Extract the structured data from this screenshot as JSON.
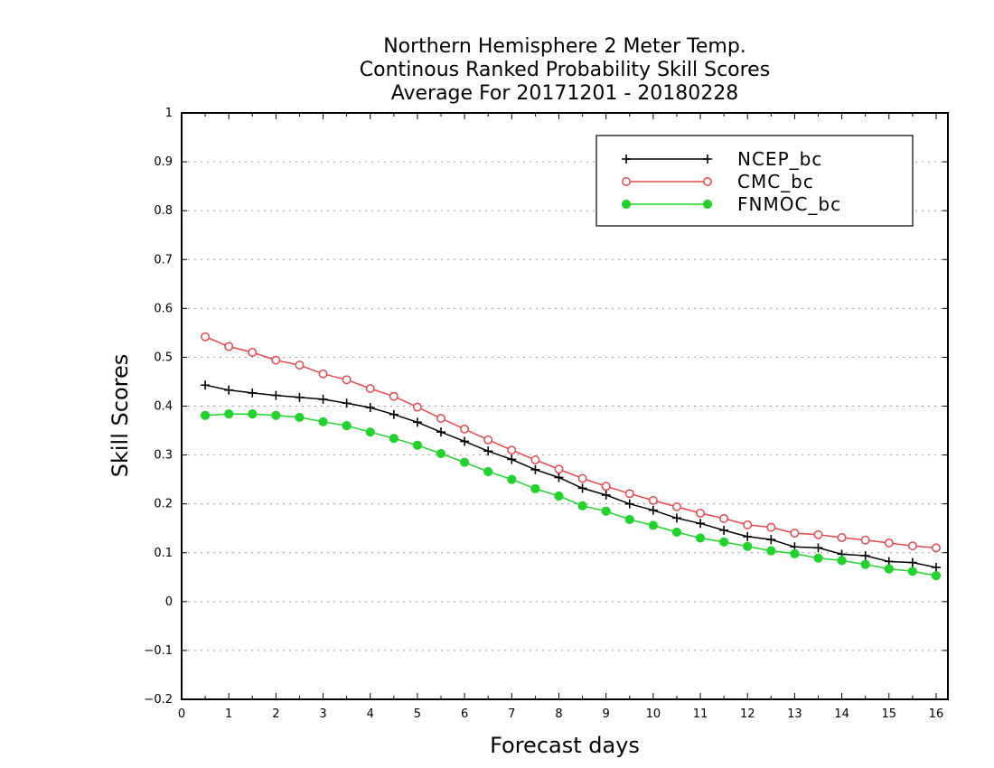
{
  "chart_data": {
    "type": "line",
    "title": [
      "Northern Hemisphere 2 Meter Temp.",
      "Continous Ranked Probability Skill Scores",
      "Average For 20171201 - 20180228"
    ],
    "xlabel": "Forecast days",
    "ylabel": "Skill Scores",
    "xlim": [
      0,
      16.25
    ],
    "ylim": [
      -0.2,
      1
    ],
    "x_ticks": [
      "0",
      "1",
      "2",
      "3",
      "4",
      "5",
      "6",
      "7",
      "8",
      "9",
      "10",
      "11",
      "12",
      "13",
      "14",
      "15",
      "16"
    ],
    "y_ticks": [
      "−0.2",
      "−0.1",
      "0",
      "0.1",
      "0.2",
      "0.3",
      "0.4",
      "0.5",
      "0.6",
      "0.7",
      "0.8",
      "0.9",
      "1"
    ],
    "y_tick_values": [
      -0.2,
      -0.1,
      0,
      0.1,
      0.2,
      0.3,
      0.4,
      0.5,
      0.6,
      0.7,
      0.8,
      0.9,
      1
    ],
    "grid": "horizontal dotted",
    "legend_position": "top-right",
    "x": [
      0.5,
      1.0,
      1.5,
      2.0,
      2.5,
      3.0,
      3.5,
      4.0,
      4.5,
      5.0,
      5.5,
      6.0,
      6.5,
      7.0,
      7.5,
      8.0,
      8.5,
      9.0,
      9.5,
      10.0,
      10.5,
      11.0,
      11.5,
      12.0,
      12.5,
      13.0,
      13.5,
      14.0,
      14.5,
      15.0,
      15.5,
      16.0
    ],
    "series": [
      {
        "name": "NCEP_bc",
        "color": "#000000",
        "marker": "plus",
        "values": [
          0.443,
          0.433,
          0.427,
          0.422,
          0.418,
          0.414,
          0.406,
          0.397,
          0.383,
          0.367,
          0.347,
          0.328,
          0.308,
          0.291,
          0.27,
          0.254,
          0.232,
          0.218,
          0.2,
          0.187,
          0.171,
          0.16,
          0.146,
          0.133,
          0.127,
          0.112,
          0.11,
          0.097,
          0.094,
          0.082,
          0.08,
          0.07
        ]
      },
      {
        "name": "CMC_bc",
        "color": "#e8474b",
        "marker": "open-circle",
        "values": [
          0.542,
          0.522,
          0.51,
          0.494,
          0.484,
          0.466,
          0.454,
          0.436,
          0.42,
          0.398,
          0.375,
          0.353,
          0.331,
          0.31,
          0.29,
          0.271,
          0.252,
          0.236,
          0.221,
          0.207,
          0.194,
          0.181,
          0.17,
          0.157,
          0.152,
          0.14,
          0.137,
          0.131,
          0.126,
          0.12,
          0.114,
          0.11
        ]
      },
      {
        "name": "FNMOC_bc",
        "color": "#22d32e",
        "marker": "filled-circle",
        "values": [
          0.381,
          0.384,
          0.384,
          0.381,
          0.377,
          0.368,
          0.36,
          0.347,
          0.334,
          0.32,
          0.303,
          0.285,
          0.266,
          0.25,
          0.231,
          0.216,
          0.196,
          0.185,
          0.168,
          0.156,
          0.142,
          0.13,
          0.122,
          0.113,
          0.104,
          0.098,
          0.089,
          0.084,
          0.076,
          0.067,
          0.062,
          0.053
        ]
      }
    ]
  }
}
